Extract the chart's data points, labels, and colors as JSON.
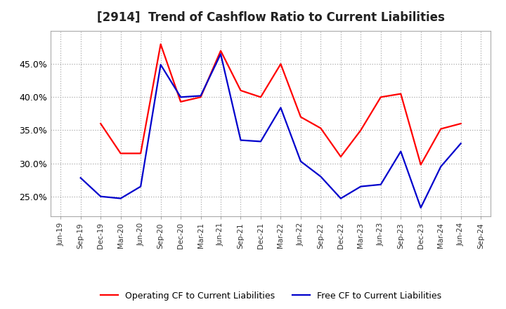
{
  "title": "[2914]  Trend of Cashflow Ratio to Current Liabilities",
  "x_labels": [
    "Jun-19",
    "Sep-19",
    "Dec-19",
    "Mar-20",
    "Jun-20",
    "Sep-20",
    "Dec-20",
    "Mar-21",
    "Jun-21",
    "Sep-21",
    "Dec-21",
    "Mar-22",
    "Jun-22",
    "Sep-22",
    "Dec-22",
    "Mar-23",
    "Jun-23",
    "Sep-23",
    "Dec-23",
    "Mar-24",
    "Jun-24",
    "Sep-24"
  ],
  "operating_cf": [
    null,
    null,
    0.36,
    0.315,
    0.315,
    0.48,
    0.393,
    0.4,
    0.47,
    0.41,
    0.4,
    0.45,
    0.37,
    0.353,
    0.31,
    0.35,
    0.4,
    0.405,
    0.298,
    0.352,
    0.36,
    null
  ],
  "free_cf": [
    null,
    0.278,
    0.25,
    0.247,
    0.265,
    0.449,
    0.4,
    0.402,
    0.465,
    0.335,
    0.333,
    0.384,
    0.303,
    0.28,
    0.247,
    0.265,
    0.268,
    0.318,
    0.233,
    0.295,
    0.33,
    null
  ],
  "ylim": [
    0.22,
    0.5
  ],
  "yticks": [
    0.25,
    0.3,
    0.35,
    0.4,
    0.45
  ],
  "operating_color": "#ff0000",
  "free_color": "#0000cc",
  "legend_operating": "Operating CF to Current Liabilities",
  "legend_free": "Free CF to Current Liabilities",
  "background_color": "#ffffff",
  "grid_color": "#aaaaaa",
  "spine_color": "#aaaaaa",
  "title_color": "#222222"
}
